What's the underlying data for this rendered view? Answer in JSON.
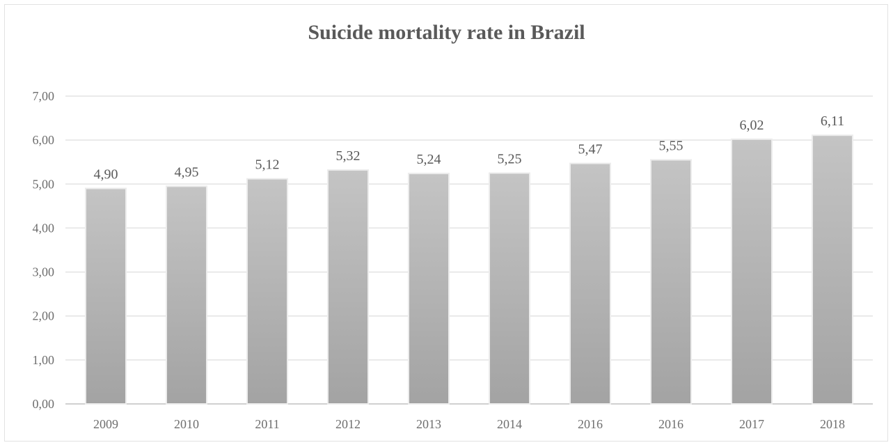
{
  "chart_data": {
    "type": "bar",
    "title": "Suicide mortality rate in Brazil",
    "xlabel": "",
    "ylabel": "",
    "categories": [
      "2009",
      "2010",
      "2011",
      "2012",
      "2013",
      "2014",
      "2016",
      "2016",
      "2017",
      "2018"
    ],
    "values": [
      4.9,
      4.95,
      5.12,
      5.32,
      5.24,
      5.25,
      5.47,
      5.55,
      6.02,
      6.11
    ],
    "value_labels": [
      "4,90",
      "4,95",
      "5,12",
      "5,32",
      "5,24",
      "5,25",
      "5,47",
      "5,55",
      "6,02",
      "6,11"
    ],
    "ylim": [
      0,
      7
    ],
    "y_ticks": [
      "0,00",
      "1,00",
      "2,00",
      "3,00",
      "4,00",
      "5,00",
      "6,00",
      "7,00"
    ],
    "grid": true,
    "legend": "none",
    "colors": {
      "bar_top": "#c4c4c4",
      "bar_bottom": "#a3a3a3",
      "grid": "#e3e3e3",
      "axis": "#d0d0d0"
    }
  }
}
